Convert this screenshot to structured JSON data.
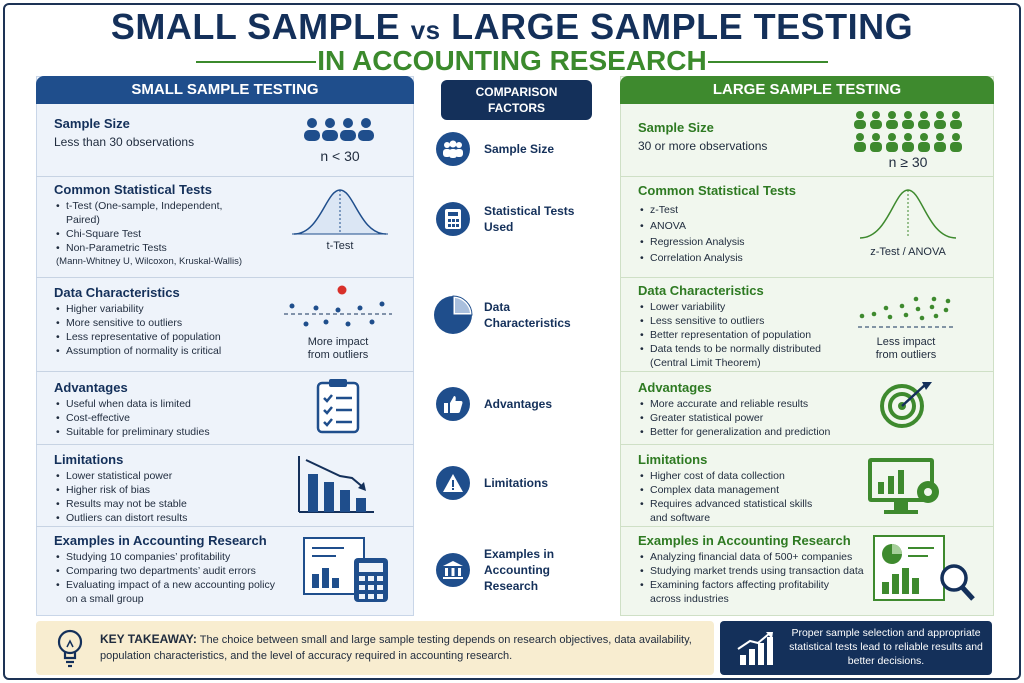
{
  "title": {
    "line1_a": "SMALL SAMPLE",
    "vs": "vs",
    "line1_b": "LARGE SAMPLE TESTING",
    "line2": "IN ACCOUNTING RESEARCH"
  },
  "headers": {
    "left": "SMALL SAMPLE TESTING",
    "middle_1": "COMPARISON",
    "middle_2": "FACTORS",
    "right": "LARGE SAMPLE TESTING"
  },
  "colors": {
    "navy": "#14305a",
    "blue": "#1f4e8c",
    "green": "#3e8a2e",
    "red": "#d8302a",
    "cream": "#f8edd0"
  },
  "factors": [
    "Sample Size",
    "Statistical Tests Used",
    "Data Characteristics",
    "Advantages",
    "Limitations",
    "Examples in Accounting Research"
  ],
  "factor_lines": {
    "tests": [
      "Statistical Tests",
      "Used"
    ],
    "data": [
      "Data",
      "Characteristics"
    ],
    "examples": [
      "Examples in",
      "Accounting",
      "Research"
    ]
  },
  "factor_icons": [
    "people-icon",
    "calculator-icon",
    "pie-chart-icon",
    "thumbs-up-icon",
    "warning-icon",
    "bank-icon"
  ],
  "small": {
    "sample_size": {
      "title": "Sample Size",
      "text": "Less than 30 observations",
      "symbol": "n < 30"
    },
    "tests": {
      "title": "Common Statistical Tests",
      "items": [
        "t-Test (One-sample, Independent,",
        "Paired)",
        "Chi-Square Test",
        "Non-Parametric Tests",
        "(Mann-Whitney U, Wilcoxon, Kruskal-Wallis)"
      ],
      "curve_label": "t-Test"
    },
    "data": {
      "title": "Data Characteristics",
      "items": [
        "Higher variability",
        "More sensitive to outliers",
        "Less representative of population",
        "Assumption of normality is critical"
      ],
      "caption_1": "More impact",
      "caption_2": "from outliers"
    },
    "advantages": {
      "title": "Advantages",
      "items": [
        "Useful when data is limited",
        "Cost-effective",
        "Suitable for preliminary studies"
      ]
    },
    "limitations": {
      "title": "Limitations",
      "items": [
        "Lower statistical power",
        "Higher risk of bias",
        "Results may not be stable",
        "Outliers can distort results"
      ]
    },
    "examples": {
      "title": "Examples in Accounting Research",
      "items": [
        "Studying 10 companies’ profitability",
        "Comparing two departments’ audit errors",
        "Evaluating impact of a new accounting policy",
        "on a small group"
      ]
    }
  },
  "large": {
    "sample_size": {
      "title": "Sample Size",
      "text": "30 or more observations",
      "symbol": "n ≥ 30"
    },
    "tests": {
      "title": "Common Statistical Tests",
      "items": [
        "z-Test",
        "ANOVA",
        "Regression Analysis",
        "Correlation Analysis"
      ],
      "curve_label": "z-Test / ANOVA"
    },
    "data": {
      "title": "Data Characteristics",
      "items": [
        "Lower variability",
        "Less sensitive to outliers",
        "Better representation of population",
        "Data tends to be normally distributed",
        "(Central Limit Theorem)"
      ],
      "caption_1": "Less impact",
      "caption_2": "from outliers"
    },
    "advantages": {
      "title": "Advantages",
      "items": [
        "More accurate and reliable results",
        "Greater statistical power",
        "Better for generalization and prediction"
      ]
    },
    "limitations": {
      "title": "Limitations",
      "items": [
        "Higher cost of data collection",
        "Complex data management",
        "Requires advanced statistical skills",
        "and software"
      ]
    },
    "examples": {
      "title": "Examples in Accounting Research",
      "items": [
        "Analyzing financial data of 500+ companies",
        "Studying market trends using transaction data",
        "Examining factors affecting profitability",
        "across industries"
      ]
    }
  },
  "takeaway": {
    "label": "KEY TAKEAWAY:",
    "text": "The choice between small and large sample testing depends on research objectives, data availability, population characteristics, and the level of accuracy required in accounting research."
  },
  "note": "Proper sample selection and appropriate statistical tests lead to reliable results and better decisions."
}
